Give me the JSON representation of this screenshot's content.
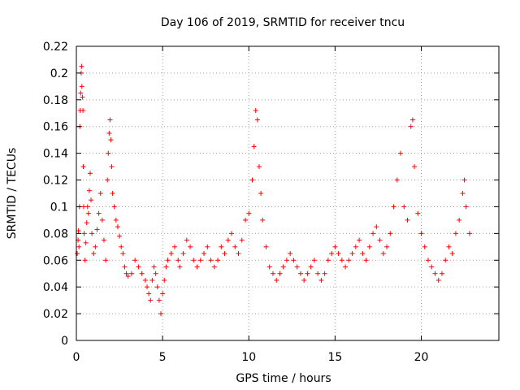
{
  "chart_data": {
    "type": "scatter",
    "title": "Day 106 of 2019, SRMTID for receiver tncu",
    "xlabel": "GPS time / hours",
    "ylabel": "SRMTID / TECUs",
    "xlim": [
      0,
      24.5
    ],
    "ylim": [
      0,
      0.22
    ],
    "x_ticks": [
      0,
      5,
      10,
      15,
      20
    ],
    "x_tick_labels": [
      "0",
      "5",
      "10",
      "15",
      "20"
    ],
    "y_ticks": [
      0,
      0.02,
      0.04,
      0.06,
      0.08,
      0.1,
      0.12,
      0.14,
      0.16,
      0.18,
      0.2,
      0.22
    ],
    "y_tick_labels": [
      "0",
      "0.02",
      "0.04",
      "0.06",
      "0.08",
      "0.1",
      "0.12",
      "0.14",
      "0.16",
      "0.18",
      "0.2",
      "0.22"
    ],
    "grid": true,
    "marker": "+",
    "color": "#ff0000",
    "series": [
      {
        "points": [
          [
            0.05,
            0.065
          ],
          [
            0.1,
            0.075
          ],
          [
            0.12,
            0.082
          ],
          [
            0.15,
            0.07
          ],
          [
            0.18,
            0.1
          ],
          [
            0.2,
            0.16
          ],
          [
            0.22,
            0.172
          ],
          [
            0.25,
            0.185
          ],
          [
            0.28,
            0.2
          ],
          [
            0.3,
            0.205
          ],
          [
            0.32,
            0.19
          ],
          [
            0.35,
            0.182
          ],
          [
            0.38,
            0.172
          ],
          [
            0.4,
            0.13
          ],
          [
            0.42,
            0.1
          ],
          [
            0.45,
            0.08
          ],
          [
            0.5,
            0.06
          ],
          [
            0.55,
            0.073
          ],
          [
            0.6,
            0.088
          ],
          [
            0.65,
            0.1
          ],
          [
            0.7,
            0.095
          ],
          [
            0.75,
            0.112
          ],
          [
            0.8,
            0.125
          ],
          [
            0.85,
            0.105
          ],
          [
            0.9,
            0.08
          ],
          [
            1.0,
            0.065
          ],
          [
            1.1,
            0.07
          ],
          [
            1.2,
            0.083
          ],
          [
            1.3,
            0.095
          ],
          [
            1.4,
            0.11
          ],
          [
            1.5,
            0.09
          ],
          [
            1.6,
            0.075
          ],
          [
            1.7,
            0.06
          ],
          [
            1.8,
            0.12
          ],
          [
            1.85,
            0.14
          ],
          [
            1.9,
            0.155
          ],
          [
            1.95,
            0.165
          ],
          [
            2.0,
            0.15
          ],
          [
            2.05,
            0.13
          ],
          [
            2.1,
            0.11
          ],
          [
            2.2,
            0.1
          ],
          [
            2.3,
            0.09
          ],
          [
            2.4,
            0.085
          ],
          [
            2.5,
            0.078
          ],
          [
            2.6,
            0.07
          ],
          [
            2.7,
            0.065
          ],
          [
            2.8,
            0.055
          ],
          [
            2.9,
            0.05
          ],
          [
            3.0,
            0.048
          ],
          [
            3.2,
            0.05
          ],
          [
            3.4,
            0.06
          ],
          [
            3.6,
            0.055
          ],
          [
            3.8,
            0.05
          ],
          [
            4.0,
            0.045
          ],
          [
            4.1,
            0.04
          ],
          [
            4.2,
            0.035
          ],
          [
            4.3,
            0.03
          ],
          [
            4.4,
            0.045
          ],
          [
            4.5,
            0.055
          ],
          [
            4.6,
            0.05
          ],
          [
            4.7,
            0.04
          ],
          [
            4.8,
            0.03
          ],
          [
            4.9,
            0.02
          ],
          [
            5.0,
            0.035
          ],
          [
            5.1,
            0.045
          ],
          [
            5.2,
            0.055
          ],
          [
            5.3,
            0.06
          ],
          [
            5.5,
            0.065
          ],
          [
            5.7,
            0.07
          ],
          [
            5.9,
            0.06
          ],
          [
            6.0,
            0.055
          ],
          [
            6.2,
            0.065
          ],
          [
            6.4,
            0.075
          ],
          [
            6.6,
            0.07
          ],
          [
            6.8,
            0.06
          ],
          [
            7.0,
            0.055
          ],
          [
            7.2,
            0.06
          ],
          [
            7.4,
            0.065
          ],
          [
            7.6,
            0.07
          ],
          [
            7.8,
            0.06
          ],
          [
            8.0,
            0.055
          ],
          [
            8.2,
            0.06
          ],
          [
            8.4,
            0.07
          ],
          [
            8.6,
            0.065
          ],
          [
            8.8,
            0.075
          ],
          [
            9.0,
            0.08
          ],
          [
            9.2,
            0.07
          ],
          [
            9.4,
            0.065
          ],
          [
            9.6,
            0.075
          ],
          [
            9.8,
            0.09
          ],
          [
            10.0,
            0.095
          ],
          [
            10.2,
            0.12
          ],
          [
            10.3,
            0.145
          ],
          [
            10.4,
            0.172
          ],
          [
            10.5,
            0.165
          ],
          [
            10.6,
            0.13
          ],
          [
            10.7,
            0.11
          ],
          [
            10.8,
            0.09
          ],
          [
            11.0,
            0.07
          ],
          [
            11.2,
            0.055
          ],
          [
            11.4,
            0.05
          ],
          [
            11.6,
            0.045
          ],
          [
            11.8,
            0.05
          ],
          [
            12.0,
            0.055
          ],
          [
            12.2,
            0.06
          ],
          [
            12.4,
            0.065
          ],
          [
            12.6,
            0.06
          ],
          [
            12.8,
            0.055
          ],
          [
            13.0,
            0.05
          ],
          [
            13.2,
            0.045
          ],
          [
            13.4,
            0.05
          ],
          [
            13.6,
            0.055
          ],
          [
            13.8,
            0.06
          ],
          [
            14.0,
            0.05
          ],
          [
            14.2,
            0.045
          ],
          [
            14.4,
            0.05
          ],
          [
            14.6,
            0.06
          ],
          [
            14.8,
            0.065
          ],
          [
            15.0,
            0.07
          ],
          [
            15.2,
            0.065
          ],
          [
            15.4,
            0.06
          ],
          [
            15.6,
            0.055
          ],
          [
            15.8,
            0.06
          ],
          [
            16.0,
            0.065
          ],
          [
            16.2,
            0.07
          ],
          [
            16.4,
            0.075
          ],
          [
            16.6,
            0.065
          ],
          [
            16.8,
            0.06
          ],
          [
            17.0,
            0.07
          ],
          [
            17.2,
            0.08
          ],
          [
            17.4,
            0.085
          ],
          [
            17.6,
            0.075
          ],
          [
            17.8,
            0.065
          ],
          [
            18.0,
            0.07
          ],
          [
            18.2,
            0.08
          ],
          [
            18.4,
            0.1
          ],
          [
            18.6,
            0.12
          ],
          [
            18.8,
            0.14
          ],
          [
            19.0,
            0.1
          ],
          [
            19.2,
            0.09
          ],
          [
            19.4,
            0.16
          ],
          [
            19.5,
            0.165
          ],
          [
            19.6,
            0.13
          ],
          [
            19.8,
            0.095
          ],
          [
            20.0,
            0.08
          ],
          [
            20.2,
            0.07
          ],
          [
            20.4,
            0.06
          ],
          [
            20.6,
            0.055
          ],
          [
            20.8,
            0.05
          ],
          [
            21.0,
            0.045
          ],
          [
            21.2,
            0.05
          ],
          [
            21.4,
            0.06
          ],
          [
            21.6,
            0.07
          ],
          [
            21.8,
            0.065
          ],
          [
            22.0,
            0.08
          ],
          [
            22.2,
            0.09
          ],
          [
            22.4,
            0.11
          ],
          [
            22.5,
            0.12
          ],
          [
            22.6,
            0.1
          ],
          [
            22.8,
            0.08
          ]
        ]
      }
    ]
  }
}
